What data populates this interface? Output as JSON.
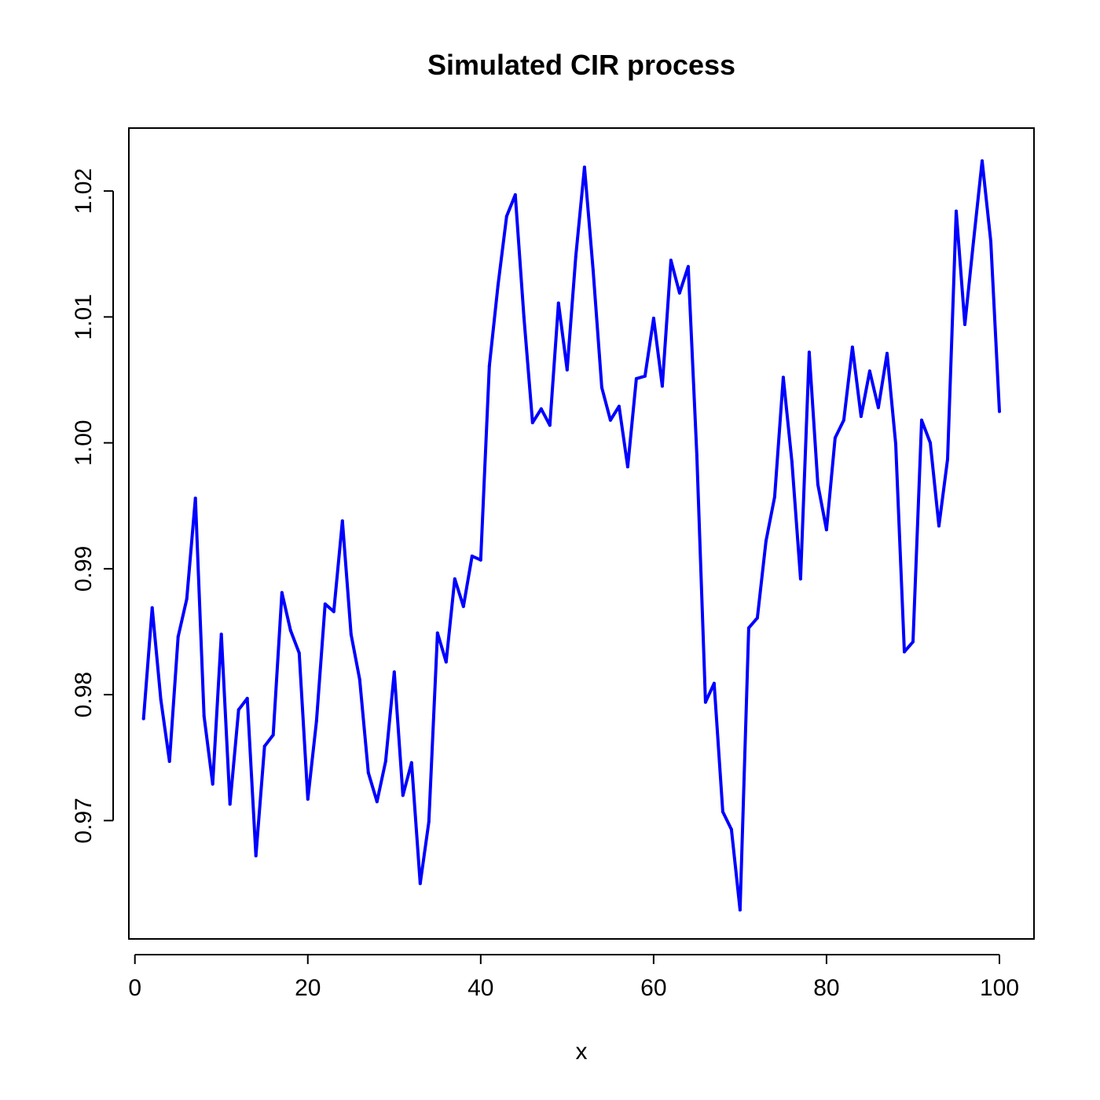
{
  "chart_data": {
    "type": "line",
    "title": "Simulated CIR process",
    "xlabel": "x",
    "ylabel": "",
    "xlim": [
      -0.7,
      104
    ],
    "ylim": [
      0.9606,
      1.025
    ],
    "x_ticks": [
      0,
      20,
      40,
      60,
      80,
      100
    ],
    "x_tick_labels": [
      "0",
      "20",
      "40",
      "60",
      "80",
      "100"
    ],
    "y_ticks": [
      0.97,
      0.98,
      0.99,
      1.0,
      1.01,
      1.02
    ],
    "y_tick_labels": [
      "0.97",
      "0.98",
      "0.99",
      "1.00",
      "1.01",
      "1.02"
    ],
    "grid": false,
    "line_color": "#0000ff",
    "series": [
      {
        "x": [
          1,
          2,
          3,
          4,
          5,
          6,
          7,
          8,
          9,
          10,
          11,
          12,
          13,
          14,
          15,
          16,
          17,
          18,
          19,
          20,
          21,
          22,
          23,
          24,
          25,
          26,
          27,
          28,
          29,
          30,
          31,
          32,
          33,
          34,
          35,
          36,
          37,
          38,
          39,
          40,
          41,
          42,
          43,
          44,
          45,
          46,
          47,
          48,
          49,
          50,
          51,
          52,
          53,
          54,
          55,
          56,
          57,
          58,
          59,
          60,
          61,
          62,
          63,
          64,
          65,
          66,
          67,
          68,
          69,
          70,
          71,
          72,
          73,
          74,
          75,
          76,
          77,
          78,
          79,
          80,
          81,
          82,
          83,
          84,
          85,
          86,
          87,
          88,
          89,
          90,
          91,
          92,
          93,
          94,
          95,
          96,
          97,
          98,
          99,
          100
        ],
        "values": [
          0.9781,
          0.9869,
          0.9796,
          0.9747,
          0.9846,
          0.9876,
          0.9956,
          0.9783,
          0.9729,
          0.9848,
          0.9713,
          0.9788,
          0.9797,
          0.9672,
          0.9759,
          0.9768,
          0.9881,
          0.9851,
          0.9833,
          0.9717,
          0.9779,
          0.9872,
          0.9866,
          0.9938,
          0.9848,
          0.9812,
          0.9738,
          0.9715,
          0.9747,
          0.9818,
          0.972,
          0.9746,
          0.965,
          0.9699,
          0.9849,
          0.9826,
          0.9892,
          0.987,
          0.991,
          0.9907,
          1.0061,
          1.0125,
          1.018,
          1.0197,
          1.01,
          1.0016,
          1.0027,
          1.0014,
          1.0111,
          1.0058,
          1.0148,
          1.0219,
          1.0137,
          1.0044,
          1.0018,
          1.0029,
          0.9981,
          1.0051,
          1.0053,
          1.0099,
          1.0045,
          1.0145,
          1.0119,
          1.014,
          0.999,
          0.9794,
          0.9809,
          0.9707,
          0.9693,
          0.9629,
          0.9853,
          0.9861,
          0.9922,
          0.9957,
          1.0052,
          0.9985,
          0.9892,
          1.0072,
          0.9967,
          0.9931,
          1.0004,
          1.0018,
          1.0076,
          1.0021,
          1.0057,
          1.0028,
          1.0071,
          0.9999,
          0.9834,
          0.9842,
          1.0018,
          1.0,
          0.9934,
          0.9987,
          1.0184,
          1.0094,
          1.016,
          1.0224,
          1.016,
          1.0025
        ]
      }
    ]
  }
}
